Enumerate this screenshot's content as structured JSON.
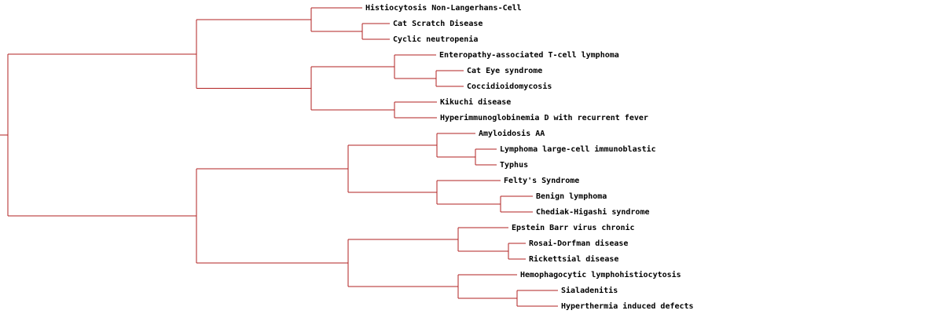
{
  "tree": {
    "branch_color": "#b22222",
    "label_color": "#000000",
    "leaves": [
      "Histiocytosis  Non-Langerhans-Cell",
      "Cat Scratch Disease",
      "Cyclic neutropenia",
      "Enteropathy-associated T-cell lymphoma",
      "Cat Eye syndrome",
      "Coccidioidomycosis",
      "Kikuchi disease",
      "Hyperimmunoglobinemia D with recurrent fever",
      "Amyloidosis AA",
      "Lymphoma  large-cell  immunoblastic",
      "Typhus",
      "Felty's Syndrome",
      "Benign lymphoma",
      "Chediak-Higashi syndrome",
      "Epstein Barr virus  chronic",
      "Rosai-Dorfman disease",
      "Rickettsial disease",
      "Hemophagocytic lymphohistiocytosis",
      "Sialadenitis",
      "Hyperthermia induced defects"
    ]
  }
}
